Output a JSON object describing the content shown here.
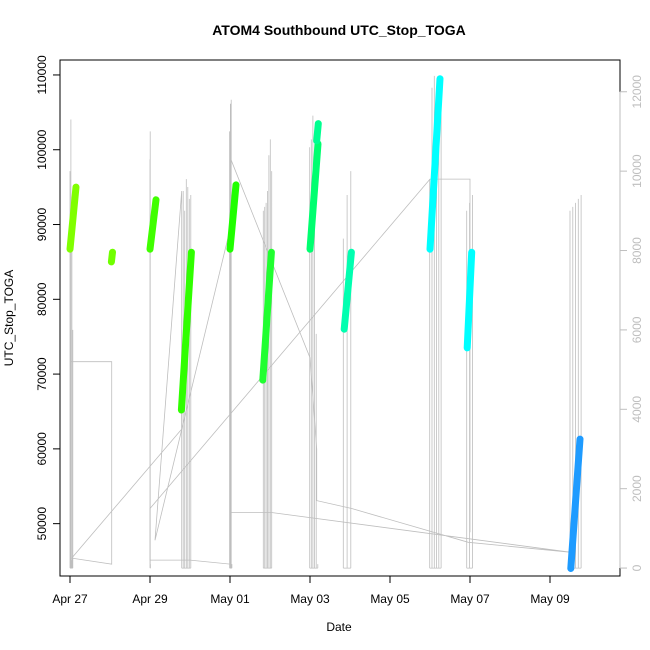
{
  "chart_data": {
    "type": "line",
    "title": "ATOM4 Southbound UTC_Stop_TOGA",
    "xlabel": "Date",
    "ylabel": "UTC_Stop_TOGA",
    "xlim": [
      "2020-04-26T18:00",
      "2020-05-10T18:00"
    ],
    "ylim": [
      43000,
      112000
    ],
    "y2lim": [
      -200,
      12800
    ],
    "x_ticks": [
      {
        "date": "2020-04-27",
        "label": "Apr 27"
      },
      {
        "date": "2020-04-29",
        "label": "Apr 29"
      },
      {
        "date": "2020-05-01",
        "label": "May 01"
      },
      {
        "date": "2020-05-03",
        "label": "May 03"
      },
      {
        "date": "2020-05-05",
        "label": "May 05"
      },
      {
        "date": "2020-05-07",
        "label": "May 07"
      },
      {
        "date": "2020-05-09",
        "label": "May 09"
      }
    ],
    "y_ticks": [
      50000,
      60000,
      70000,
      80000,
      90000,
      100000,
      110000
    ],
    "y2_ticks": [
      0,
      2000,
      4000,
      6000,
      8000,
      10000,
      12000
    ],
    "grid": false,
    "series": [
      {
        "color": "#80ff00",
        "x": [
          "2020-04-27T00:00",
          "2020-04-27T03:36"
        ],
        "y": [
          86700,
          95000
        ]
      },
      {
        "color": "#70ff00",
        "x": [
          "2020-04-28T00:50",
          "2020-04-28T01:30"
        ],
        "y": [
          85000,
          86300
        ]
      },
      {
        "color": "#40ff00",
        "x": [
          "2020-04-29T00:00",
          "2020-04-29T03:36"
        ],
        "y": [
          86700,
          93300
        ]
      },
      {
        "color": "#30ff00",
        "x": [
          "2020-04-29T18:50",
          "2020-04-30T00:50"
        ],
        "y": [
          65200,
          86300
        ]
      },
      {
        "color": "#20ff00",
        "x": [
          "2020-05-01T00:00",
          "2020-05-01T03:36"
        ],
        "y": [
          86700,
          95300
        ]
      },
      {
        "color": "#20ff30",
        "x": [
          "2020-05-01T19:40",
          "2020-05-02T00:50"
        ],
        "y": [
          69200,
          86300
        ]
      },
      {
        "color": "#00ff70",
        "x": [
          "2020-05-03T00:00",
          "2020-05-03T04:48"
        ],
        "y": [
          86700,
          100800
        ]
      },
      {
        "color": "#00ff90",
        "x": [
          "2020-05-03T04:00",
          "2020-05-03T05:00"
        ],
        "y": [
          101200,
          103500
        ]
      },
      {
        "color": "#00ffb0",
        "x": [
          "2020-05-03T20:30",
          "2020-05-04T00:50"
        ],
        "y": [
          76000,
          86300
        ]
      },
      {
        "color": "#00ffff",
        "x": [
          "2020-05-06T00:00",
          "2020-05-06T06:00"
        ],
        "y": [
          86700,
          109500
        ]
      },
      {
        "color": "#00ffff",
        "x": [
          "2020-05-06T22:20",
          "2020-05-07T01:00"
        ],
        "y": [
          73500,
          86300
        ]
      },
      {
        "color": "#1e9bff",
        "x": [
          "2020-05-09T12:30",
          "2020-05-09T18:00"
        ],
        "y": [
          44000,
          61300
        ]
      }
    ],
    "secondary_series": {
      "color": "#bebebe",
      "bursts": [
        {
          "x": [
            "2020-04-27T00:00",
            "2020-04-27T01:40"
          ],
          "peaks": [
            10000,
            6000,
            11300,
            200,
            9000,
            300,
            6000
          ]
        },
        {
          "x": [
            "2020-04-29T00:00",
            "2020-04-29T00:15"
          ],
          "peaks": [
            10300,
            11000,
            100
          ]
        },
        {
          "x": [
            "2020-04-29T19:00",
            "2020-04-30T00:30"
          ],
          "peaks": [
            6000,
            9500,
            9000,
            9800,
            9600,
            9300,
            9400
          ]
        },
        {
          "x": [
            "2020-04-30T23:45",
            "2020-05-01T01:10"
          ],
          "peaks": [
            11000,
            11700,
            11800,
            100
          ]
        },
        {
          "x": [
            "2020-05-01T20:00",
            "2020-05-02T01:00"
          ],
          "peaks": [
            9000,
            9100,
            9200,
            9500,
            10400,
            10800,
            10000
          ]
        },
        {
          "x": [
            "2020-05-02T23:50",
            "2020-05-03T04:40"
          ],
          "peaks": [
            10600,
            10800,
            11400,
            8600,
            5900,
            100
          ]
        },
        {
          "x": [
            "2020-05-03T20:00",
            "2020-05-04T00:30"
          ],
          "peaks": [
            8300,
            9400,
            10000
          ]
        },
        {
          "x": [
            "2020-05-05T23:50",
            "2020-05-06T06:40"
          ],
          "peaks": [
            9800,
            12100,
            12400,
            12100,
            12300,
            12000
          ]
        },
        {
          "x": [
            "2020-05-06T22:00",
            "2020-05-07T01:30"
          ],
          "peaks": [
            9000,
            9200,
            9400
          ]
        },
        {
          "x": [
            "2020-05-09T12:00",
            "2020-05-09T18:40"
          ],
          "peaks": [
            9000,
            9100,
            9200,
            9300,
            9400
          ]
        }
      ],
      "path": [
        [
          "2020-04-27T00:00",
          5200
        ],
        [
          "2020-04-28T01:00",
          5200
        ],
        [
          "2020-04-28T01:00",
          100
        ],
        [
          "2020-04-27T01:00",
          250
        ],
        [
          "2020-04-29T19:00",
          3500
        ],
        [
          "2020-04-29T19:00",
          9500
        ],
        [
          "2020-04-29T03:00",
          700
        ],
        [
          "2020-04-30T23:50",
          8500
        ],
        [
          "2020-05-01T00:30",
          10300
        ],
        [
          "2020-05-03T00:00",
          5300
        ],
        [
          "2020-05-03T04:00",
          3000
        ],
        [
          "2020-05-03T04:00",
          1700
        ],
        [
          "2020-05-04T01:00",
          1500
        ],
        [
          "2020-05-06T23:00",
          650
        ],
        [
          "2020-05-09T12:00",
          400
        ],
        [
          "2020-05-02T00:50",
          1400
        ],
        [
          "2020-05-01T00:00",
          1400
        ],
        [
          "2020-05-01T00:00",
          100
        ],
        [
          "2020-04-30T00:00",
          200
        ],
        [
          "2020-04-29T00:00",
          200
        ],
        [
          "2020-04-29T00:00",
          1500
        ],
        [
          "2020-05-06T00:00",
          9800
        ],
        [
          "2020-05-07T00:00",
          9800
        ],
        [
          "2020-05-07T00:00",
          900
        ]
      ]
    }
  }
}
